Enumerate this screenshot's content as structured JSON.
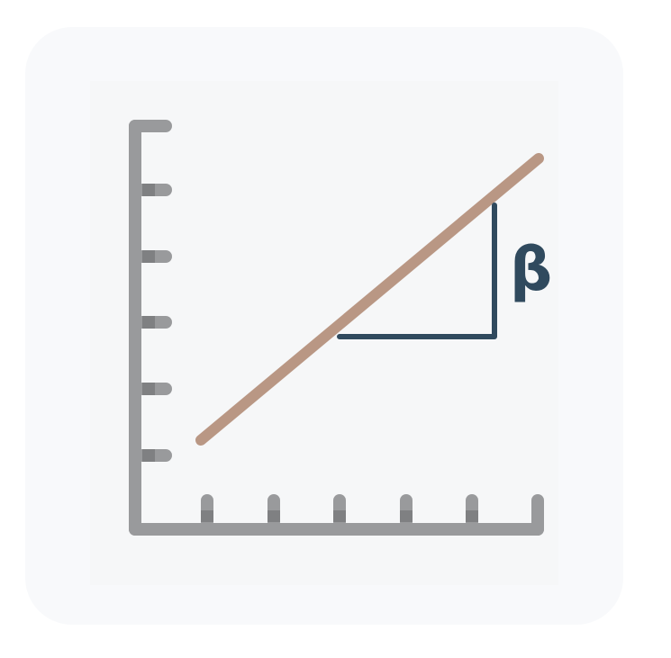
{
  "icon": {
    "name": "linear-regression-slope-icon",
    "symbol": "β",
    "colors": {
      "card_background": "#f8f9fb",
      "axis": "#999a9c",
      "axis_tick_shade": "#7f8082",
      "regression_line": "#b99784",
      "slope_triangle": "#304a5e"
    }
  }
}
